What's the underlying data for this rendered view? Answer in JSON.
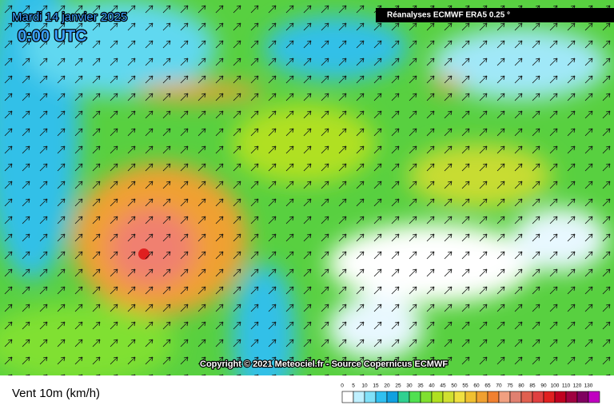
{
  "map": {
    "date": "Mardi 14 janvier 2025",
    "time": "0:00 UTC",
    "source": "Réanalyses ECMWF ERA5 0.25 °",
    "copyright": "Copyright © 2021 Meteociel.fr - Source Copernicus ECMWF"
  },
  "legend": {
    "title": "Vent 10m (km/h)",
    "labels": [
      0,
      5,
      10,
      15,
      20,
      25,
      30,
      35,
      40,
      45,
      50,
      55,
      60,
      65,
      70,
      75,
      80,
      85,
      90,
      100,
      110,
      120,
      130
    ],
    "colors": [
      "#ffffff",
      "#c0f0ff",
      "#80e0f8",
      "#30c0f0",
      "#10a0e0",
      "#30d090",
      "#50e050",
      "#80e030",
      "#b0e020",
      "#d0e030",
      "#f0e040",
      "#f0c030",
      "#f0a030",
      "#f08030",
      "#f0a080",
      "#e08070",
      "#e06050",
      "#e04040",
      "#e02020",
      "#c00020",
      "#a00040",
      "#800060",
      "#c000c0"
    ]
  }
}
